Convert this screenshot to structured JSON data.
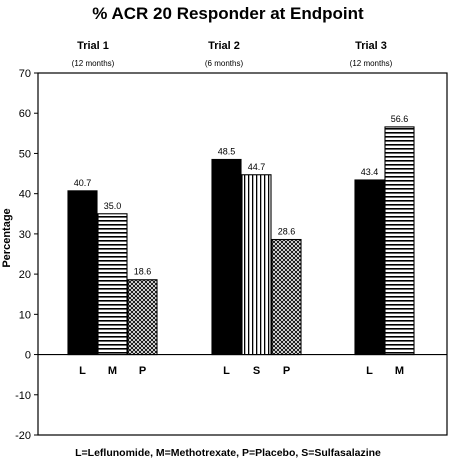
{
  "chart_data": {
    "type": "bar",
    "title": "% ACR 20 Responder at Endpoint",
    "ylabel": "Percentage",
    "ylim": [
      -20,
      70
    ],
    "yticks": [
      70,
      60,
      50,
      40,
      30,
      20,
      10,
      0,
      -10,
      -20
    ],
    "grid": false,
    "footnote": "L=Leflunomide,  M=Methotrexate,  P=Placebo,  S=Sulfasalazine",
    "groups": [
      {
        "name": "Trial 1",
        "duration": "(12 months)",
        "bars": [
          {
            "category": "L",
            "value": 40.7,
            "label": "40.7",
            "pattern": "solid"
          },
          {
            "category": "M",
            "value": 35.0,
            "label": "35.0",
            "pattern": "horizontal"
          },
          {
            "category": "P",
            "value": 18.6,
            "label": "18.6",
            "pattern": "crosshatch"
          }
        ]
      },
      {
        "name": "Trial 2",
        "duration": "(6 months)",
        "bars": [
          {
            "category": "L",
            "value": 48.5,
            "label": "48.5",
            "pattern": "solid"
          },
          {
            "category": "S",
            "value": 44.7,
            "label": "44.7",
            "pattern": "vertical"
          },
          {
            "category": "P",
            "value": 28.6,
            "label": "28.6",
            "pattern": "crosshatch"
          }
        ]
      },
      {
        "name": "Trial 3",
        "duration": "(12 months)",
        "bars": [
          {
            "category": "L",
            "value": 43.4,
            "label": "43.4",
            "pattern": "solid"
          },
          {
            "category": "M",
            "value": 56.6,
            "label": "56.6",
            "pattern": "horizontal"
          }
        ]
      }
    ]
  }
}
